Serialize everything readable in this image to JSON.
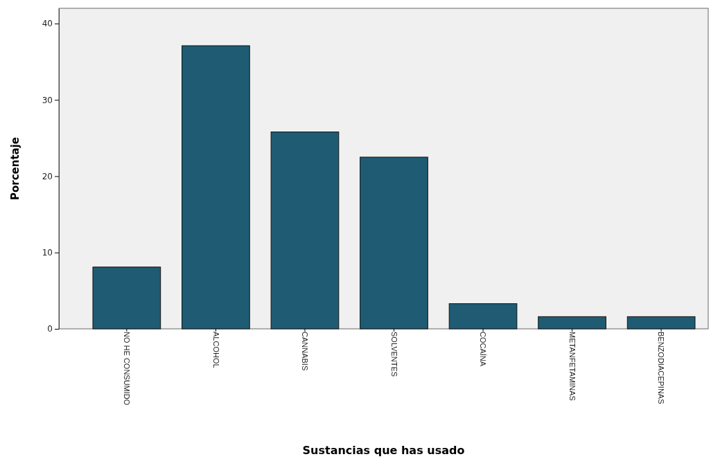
{
  "chart_data": {
    "type": "bar",
    "xlabel": "Sustancias que has usado",
    "ylabel": "Porcentaje",
    "categories": [
      "NO HE CONSUMIDO",
      "ALCOHOL",
      "CANNABIS",
      "SOLVENTES",
      "COCAÍNA",
      "METANFETAMINAS",
      "BENZODIACEPINAS"
    ],
    "values": [
      8.1,
      37.1,
      25.8,
      22.5,
      3.3,
      1.6,
      1.6
    ],
    "color": "#1f5c73",
    "ylim": [
      0,
      42
    ],
    "yticks": [
      0,
      10,
      20,
      30,
      40
    ],
    "grid": false
  }
}
